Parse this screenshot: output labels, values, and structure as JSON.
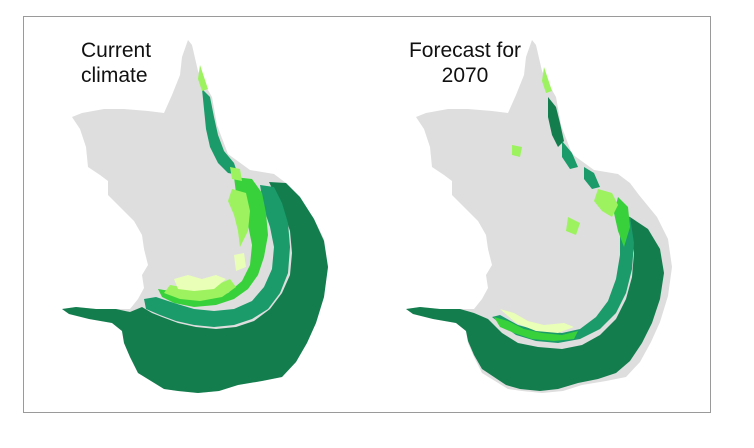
{
  "panels": [
    {
      "title_line1": "Current",
      "title_line2": "climate"
    },
    {
      "title_line1": "Forecast for",
      "title_line2": "2070"
    }
  ],
  "colors": {
    "base": "#dedede",
    "darkest": "#137d4e",
    "dark": "#1b9a6a",
    "mid": "#35bf82",
    "bright": "#39d13b",
    "light": "#9cf35f",
    "pale": "#e9ffb8"
  }
}
